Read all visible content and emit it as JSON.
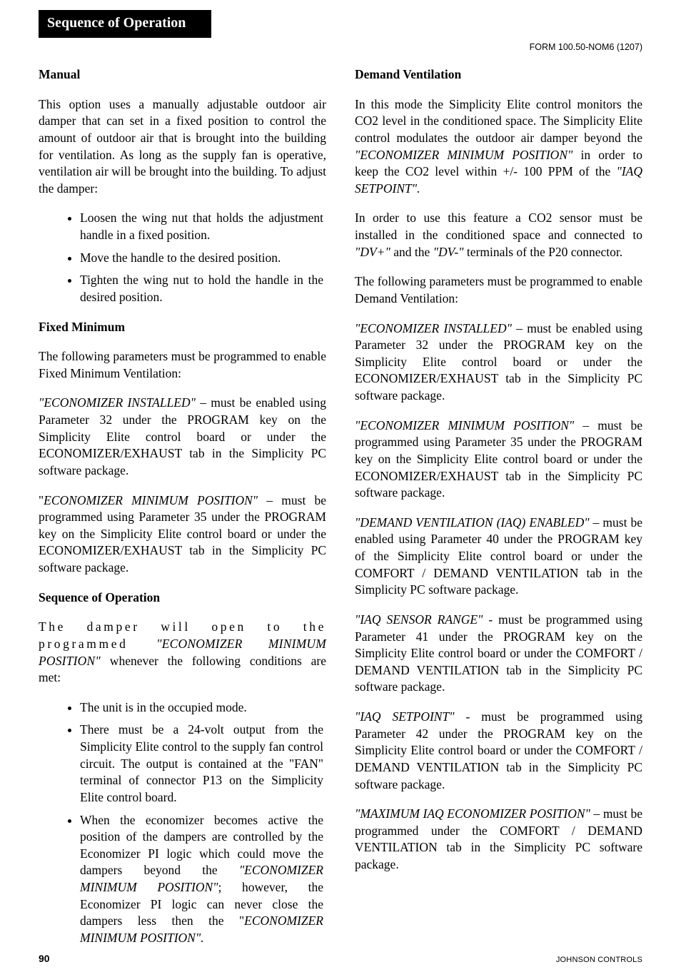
{
  "header": {
    "section_title": "Sequence of Operation",
    "form_id": "FORM 100.50-NOM6 (1207)"
  },
  "footer": {
    "page_number": "90",
    "brand": "JOHNSON CONTROLS"
  },
  "left": {
    "h_manual": "Manual",
    "p_manual": "This option uses a manually adjustable outdoor air damper that can set in a fixed position to control the amount of outdoor air that is brought into the building for ventilation.   As long as the supply fan is operative, ventilation air will be brought into the building. To adjust the damper:",
    "bullets_manual": [
      "Loosen the wing nut that holds the adjustment handle in a fixed position.",
      "Move the handle to the desired position.",
      "Tighten the wing nut to hold the handle in the desired position."
    ],
    "h_fixed": "Fixed Minimum",
    "p_fixed_intro": "The following parameters must be programmed to enable Fixed Minimum Ventilation:",
    "p_fixed_econ_pre": "\"ECONOMIZER INSTALLED\"",
    "p_fixed_econ_post": " – must be enabled using Parameter 32 under the PROGRAM key on the Simplicity Elite control board or under the ECONOMIZER/EXHAUST tab in the Simplicity PC software package.",
    "p_fixed_min_open": "\"",
    "p_fixed_min_ital": "ECONOMIZER MINIMUM POSITION\"",
    "p_fixed_min_post": " – must be programmed using Parameter 35 under the PROGRAM key on the Simplicity Elite control board or under the ECONOMIZER/EXHAUST tab in the Simplicity PC software package.",
    "h_seq": "Sequence of Operation",
    "p_seq_pre": "The damper will open to the programmed ",
    "p_seq_ital": "\"ECONOMIZER MINIMUM POSITION\"",
    "p_seq_post": " whenever the following conditions are met:",
    "bullets_seq": [
      {
        "text": "The unit is in the occupied mode."
      },
      {
        "text": "There must be a 24-volt output from the Simplicity Elite control to the supply fan control circuit. The output is contained at the \"FAN\" terminal of connector P13 on the Simplicity Elite control board."
      },
      {
        "pre": "When the economizer becomes active the position of the dampers are controlled by the Economizer PI logic which could move the dampers beyond the ",
        "ital1": "\"ECONOMIZER MINIMUM POSITION\"",
        "mid": "; however, the Economizer PI logic can never close the dampers less then the \"",
        "ital2": "ECONOMIZER MINIMUM POSITION\"."
      }
    ]
  },
  "right": {
    "h_dv": "Demand Ventilation",
    "p_dv1_pre": "In this mode the Simplicity Elite control monitors the CO2 level in the conditioned space.  The Simplicity Elite control modulates the outdoor air damper beyond the ",
    "p_dv1_ital1": "\"ECONOMIZER MINIMUM POSITION\"",
    "p_dv1_mid": " in order to keep the CO2 level within +/- 100 PPM of the ",
    "p_dv1_ital2": "\"IAQ SETPOINT\".",
    "p_dv2_pre": "In order to use this feature a CO2 sensor must be installed in the conditioned space and connected to ",
    "p_dv2_ital1": "\"DV+\"",
    "p_dv2_mid": " and the ",
    "p_dv2_ital2": "\"DV-\"",
    "p_dv2_post": " terminals of the P20 connector.",
    "p_dv_params": "The following parameters must be programmed to enable Demand Ventilation:",
    "p_r_econ_ital": "\"ECONOMIZER INSTALLED\"",
    "p_r_econ_post": " – must be enabled using Parameter 32 under the PROGRAM key on the Simplicity Elite control board or under the ECONOMIZER/EXHAUST tab in the Simplicity PC software package.",
    "p_r_min_ital": "\"ECONOMIZER MINIMUM POSITION\"",
    "p_r_min_post": " – must be programmed using Parameter 35 under the PROGRAM key on the Simplicity Elite control board or under the ECONOMIZER/EXHAUST tab in the Simplicity PC software package.",
    "p_r_dviaq_ital": "\"DEMAND VENTILATION (IAQ) ENABLED\"",
    "p_r_dviaq_post": " – must be enabled using Parameter 40 under the PROGRAM key of the Simplicity Elite control board or under the COMFORT / DEMAND VENTILATION tab in the Simplicity PC software package.",
    "p_r_range_ital": "\"IAQ SENSOR RANGE\"",
    "p_r_range_post": " - must be programmed using Parameter 41 under the PROGRAM key on the Simplicity Elite control board or under the COMFORT / DEMAND VENTILATION tab in the Simplicity PC software package.",
    "p_r_set_ital": "\"IAQ SETPOINT\"",
    "p_r_set_post": " - must be programmed using Parameter 42 under the PROGRAM key on the Simplicity Elite control board or under the COMFORT / DEMAND VENTILATION tab in the Simplicity PC software package.",
    "p_r_max_ital": "\"MAXIMUM IAQ ECONOMIZER POSITION\"",
    "p_r_max_post": " – must be programmed under the COMFORT / DEMAND VENTILATION tab in the Simplicity PC software package."
  }
}
